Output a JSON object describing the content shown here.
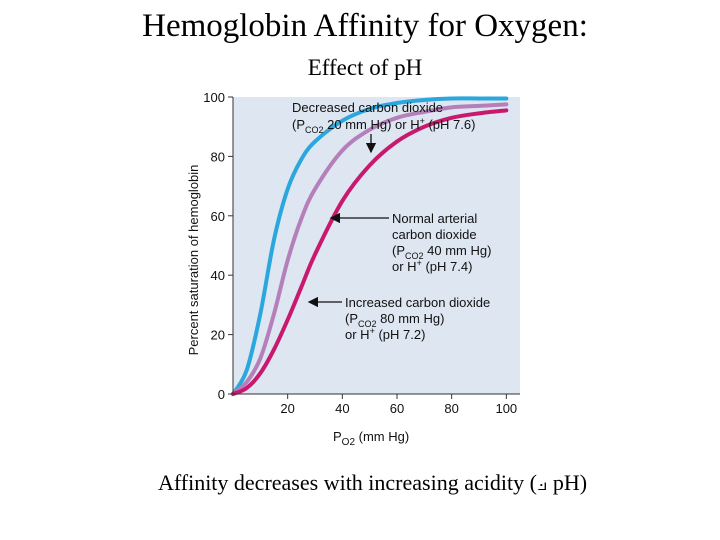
{
  "page": {
    "title": "Hemoglobin Affinity for Oxygen:",
    "subtitle": "Effect of pH",
    "caption": "Affinity decreases with increasing acidity (⟓ pH)"
  },
  "chart_data": {
    "type": "line",
    "xlabel": "PO2 (mm Hg)",
    "ylabel": "Percent saturation of hemoglobin",
    "xlim": [
      0,
      105
    ],
    "ylim": [
      0,
      100
    ],
    "xticks": [
      "20",
      "40",
      "60",
      "80",
      "100"
    ],
    "yticks": [
      "0",
      "20",
      "40",
      "60",
      "80",
      "100"
    ],
    "grid": false,
    "background": "#dde6f1",
    "series": [
      {
        "color": "#2ba7de",
        "x": [
          0,
          5,
          10,
          15,
          20,
          25,
          30,
          40,
          50,
          60,
          70,
          80,
          90,
          100
        ],
        "values": [
          0,
          8,
          27,
          52,
          69,
          79,
          85,
          92,
          96,
          98,
          99,
          99.5,
          99.5,
          99.5
        ]
      },
      {
        "color": "#b57fb9",
        "x": [
          0,
          5,
          10,
          15,
          20,
          25,
          30,
          40,
          50,
          60,
          70,
          80,
          90,
          100
        ],
        "values": [
          0,
          4,
          12,
          27,
          45,
          59,
          69,
          82,
          89,
          93,
          95,
          96.5,
          97,
          97.5
        ]
      },
      {
        "color": "#c8196f",
        "x": [
          0,
          5,
          10,
          15,
          20,
          25,
          30,
          40,
          50,
          60,
          70,
          80,
          90,
          100
        ],
        "values": [
          0,
          2,
          7,
          15,
          25,
          36,
          47,
          65,
          77,
          85,
          90,
          93,
          94.5,
          95.5
        ]
      }
    ],
    "annotations": [
      {
        "lines": [
          "Decreased carbon dioxide",
          "(PCO2 20 mm Hg) or H+ (pH 7.6)"
        ]
      },
      {
        "lines": [
          "Normal arterial",
          "carbon dioxide",
          "(PCO2 40 mm Hg)",
          "or H+ (pH 7.4)"
        ]
      },
      {
        "lines": [
          "Increased carbon dioxide",
          "(PCO2 80 mm Hg)",
          "or H+ (pH 7.2)"
        ]
      }
    ]
  }
}
